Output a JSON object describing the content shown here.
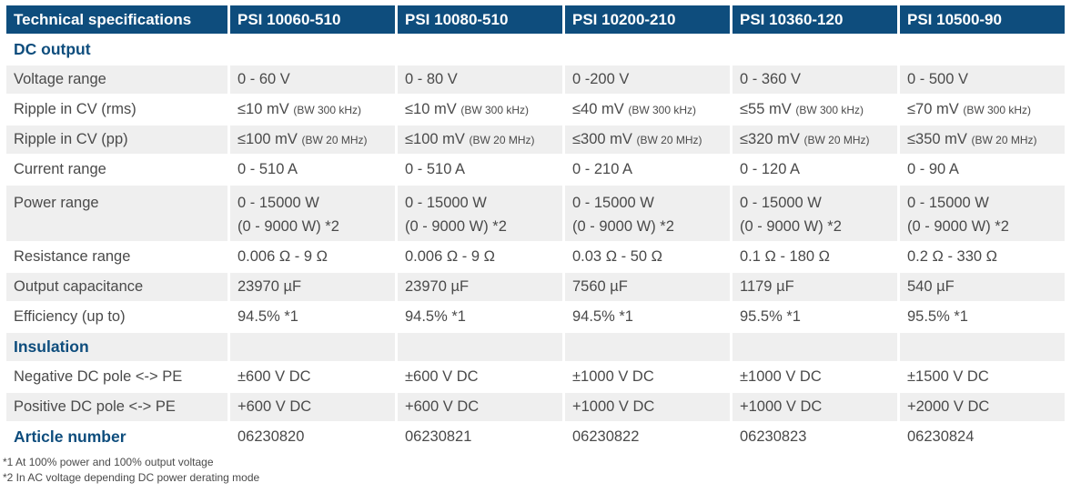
{
  "header": [
    "Technical specifications",
    "PSI 10060-510",
    "PSI 10080-510",
    "PSI 10200-210",
    "PSI 10360-120",
    "PSI 10500-90"
  ],
  "dc_output": {
    "title": "DC output",
    "voltage_range": {
      "label": "Voltage range",
      "values": [
        "0 - 60 V",
        "0 - 80 V",
        "0 -200 V",
        "0 - 360 V",
        "0 - 500 V"
      ]
    },
    "ripple_rms": {
      "label": "Ripple in CV (rms)",
      "values": [
        "≤10 mV",
        "≤10 mV",
        "≤40 mV",
        "≤55 mV",
        "≤70 mV"
      ],
      "note": "(BW 300 kHz)"
    },
    "ripple_pp": {
      "label": "Ripple in CV (pp)",
      "values": [
        "≤100 mV",
        "≤100 mV",
        "≤300 mV",
        "≤320 mV",
        "≤350 mV"
      ],
      "note": "(BW 20 MHz)"
    },
    "current_range": {
      "label": "Current range",
      "values": [
        "0 - 510 A",
        "0 - 510 A",
        "0 - 210 A",
        "0 - 120 A",
        "0 - 90 A"
      ]
    },
    "power_range": {
      "label": "Power range",
      "line1": [
        "0 - 15000 W",
        "0 - 15000 W",
        "0 - 15000 W",
        "0 - 15000 W",
        "0 - 15000 W"
      ],
      "line2": [
        "(0 - 9000 W) *2",
        "(0 - 9000 W) *2",
        "(0 - 9000 W) *2",
        "(0 - 9000 W) *2",
        "(0 - 9000 W) *2"
      ]
    },
    "resistance_range": {
      "label": "Resistance range",
      "values": [
        "0.006 Ω - 9 Ω",
        "0.006 Ω - 9 Ω",
        "0.03 Ω - 50 Ω",
        "0.1 Ω - 180 Ω",
        "0.2 Ω - 330 Ω"
      ]
    },
    "output_capacitance": {
      "label": "Output capacitance",
      "values": [
        "23970 µF",
        "23970 µF",
        "7560 µF",
        "1179 µF",
        "540 µF"
      ]
    },
    "efficiency": {
      "label": "Efficiency (up to)",
      "values": [
        "94.5% *1",
        "94.5% *1",
        "94.5% *1",
        "95.5% *1",
        "95.5% *1"
      ]
    }
  },
  "insulation": {
    "title": "Insulation",
    "negative_pole": {
      "label": "Negative DC pole <-> PE",
      "values": [
        "±600 V DC",
        "±600 V DC",
        "±1000 V DC",
        "±1000 V DC",
        "±1500 V DC"
      ]
    },
    "positive_pole": {
      "label": "Positive DC pole <-> PE",
      "values": [
        "+600 V DC",
        "+600 V DC",
        "+1000 V DC",
        "+1000 V DC",
        "+2000 V DC"
      ]
    }
  },
  "article_number": {
    "label": "Article number",
    "values": [
      "06230820",
      "06230821",
      "06230822",
      "06230823",
      "06230824"
    ]
  },
  "footnotes": [
    "*1 At 100% power and 100% output voltage",
    "*2 In AC voltage depending DC power derating mode"
  ],
  "colors": {
    "header_bg": "#0e4d7d",
    "row_shade": "#efefef",
    "section_text": "#0e4d7d",
    "body_text": "#4a4a4a"
  }
}
